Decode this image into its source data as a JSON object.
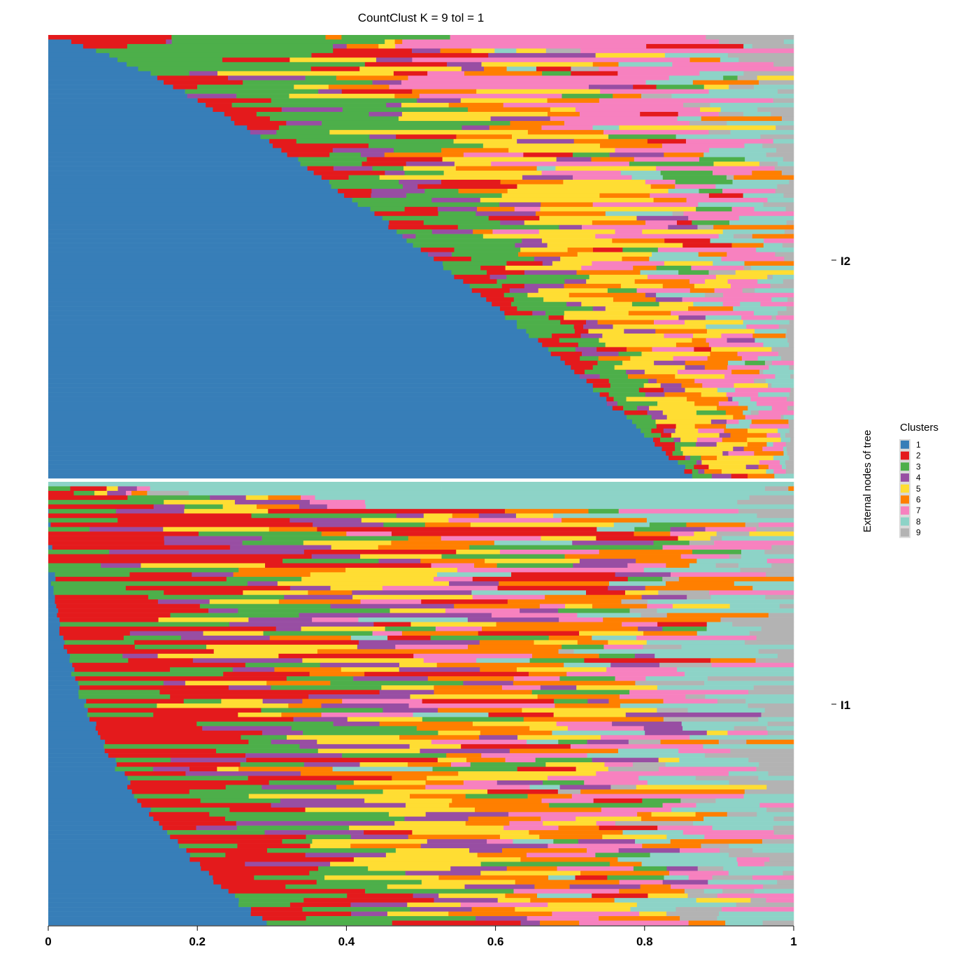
{
  "chart_data": {
    "type": "bar",
    "orientation": "horizontal",
    "stacked": true,
    "title": "CountClust K =  9 tol =  1",
    "xlabel": "",
    "ylabel": "External nodes of tree",
    "xlim": [
      0,
      1
    ],
    "x_ticks": [
      "0",
      "0.2",
      "0.4",
      "0.6",
      "0.8",
      "1"
    ],
    "grid": false,
    "legend": {
      "title": "Clusters",
      "position": "right",
      "entries": [
        "1",
        "2",
        "3",
        "4",
        "5",
        "6",
        "7",
        "8",
        "9"
      ]
    },
    "colors": [
      "#377EB8",
      "#E41A1C",
      "#4DAF4A",
      "#984EA3",
      "#FFDD33",
      "#FF7F00",
      "#F781BF",
      "#8DD3C7",
      "#B3B3B3"
    ],
    "panels": [
      {
        "label": "I2",
        "n_rows": 98,
        "cluster1_share": {
          "first": 0.0,
          "last": 0.863,
          "shape": "concave"
        },
        "sample_rows": [
          {
            "row": 1,
            "values": [
              0.0,
              0.1,
              0.36,
              0.0,
              0.0,
              0.02,
              0.44,
              0.0,
              0.08
            ]
          },
          {
            "row": 10,
            "values": [
              0.05,
              0.1,
              0.15,
              0.08,
              0.15,
              0.08,
              0.25,
              0.1,
              0.04
            ]
          },
          {
            "row": 20,
            "values": [
              0.14,
              0.06,
              0.18,
              0.05,
              0.2,
              0.08,
              0.17,
              0.08,
              0.04
            ]
          },
          {
            "row": 30,
            "values": [
              0.24,
              0.12,
              0.14,
              0.06,
              0.16,
              0.08,
              0.12,
              0.06,
              0.02
            ]
          },
          {
            "row": 40,
            "values": [
              0.3,
              0.08,
              0.12,
              0.06,
              0.16,
              0.08,
              0.12,
              0.06,
              0.02
            ]
          },
          {
            "row": 50,
            "values": [
              0.36,
              0.06,
              0.12,
              0.04,
              0.14,
              0.08,
              0.12,
              0.06,
              0.02
            ]
          },
          {
            "row": 60,
            "values": [
              0.44,
              0.04,
              0.08,
              0.04,
              0.14,
              0.08,
              0.1,
              0.06,
              0.02
            ]
          },
          {
            "row": 70,
            "values": [
              0.53,
              0.04,
              0.06,
              0.04,
              0.12,
              0.06,
              0.08,
              0.05,
              0.02
            ]
          },
          {
            "row": 80,
            "values": [
              0.64,
              0.03,
              0.04,
              0.02,
              0.1,
              0.06,
              0.06,
              0.04,
              0.01
            ]
          },
          {
            "row": 90,
            "values": [
              0.76,
              0.02,
              0.02,
              0.02,
              0.07,
              0.04,
              0.04,
              0.02,
              0.01
            ]
          },
          {
            "row": 98,
            "values": [
              0.86,
              0.01,
              0.01,
              0.01,
              0.05,
              0.02,
              0.02,
              0.01,
              0.01
            ]
          }
        ]
      },
      {
        "label": "I1",
        "n_rows": 98,
        "cluster1_share": {
          "first": 0.0,
          "last": 0.29,
          "shape": "convex"
        },
        "sample_rows": [
          {
            "row": 1,
            "values": [
              0.0,
              0.0,
              0.0,
              0.0,
              0.0,
              0.0,
              0.0,
              0.94,
              0.06
            ]
          },
          {
            "row": 10,
            "values": [
              0.01,
              0.28,
              0.2,
              0.15,
              0.12,
              0.08,
              0.08,
              0.05,
              0.03
            ]
          },
          {
            "row": 20,
            "values": [
              0.01,
              0.22,
              0.15,
              0.15,
              0.14,
              0.12,
              0.09,
              0.08,
              0.04
            ]
          },
          {
            "row": 30,
            "values": [
              0.02,
              0.22,
              0.15,
              0.12,
              0.14,
              0.12,
              0.09,
              0.09,
              0.05
            ]
          },
          {
            "row": 40,
            "values": [
              0.02,
              0.2,
              0.15,
              0.12,
              0.14,
              0.12,
              0.1,
              0.1,
              0.05
            ]
          },
          {
            "row": 50,
            "values": [
              0.02,
              0.18,
              0.15,
              0.12,
              0.14,
              0.12,
              0.1,
              0.1,
              0.07
            ]
          },
          {
            "row": 60,
            "values": [
              0.03,
              0.16,
              0.15,
              0.12,
              0.14,
              0.12,
              0.1,
              0.1,
              0.08
            ]
          },
          {
            "row": 70,
            "values": [
              0.04,
              0.16,
              0.15,
              0.12,
              0.14,
              0.12,
              0.1,
              0.1,
              0.07
            ]
          },
          {
            "row": 80,
            "values": [
              0.06,
              0.15,
              0.15,
              0.12,
              0.14,
              0.12,
              0.1,
              0.1,
              0.06
            ]
          },
          {
            "row": 90,
            "values": [
              0.1,
              0.14,
              0.14,
              0.12,
              0.14,
              0.12,
              0.1,
              0.09,
              0.05
            ]
          },
          {
            "row": 98,
            "values": [
              0.29,
              0.1,
              0.14,
              0.05,
              0.12,
              0.1,
              0.08,
              0.07,
              0.05
            ]
          }
        ]
      }
    ]
  }
}
